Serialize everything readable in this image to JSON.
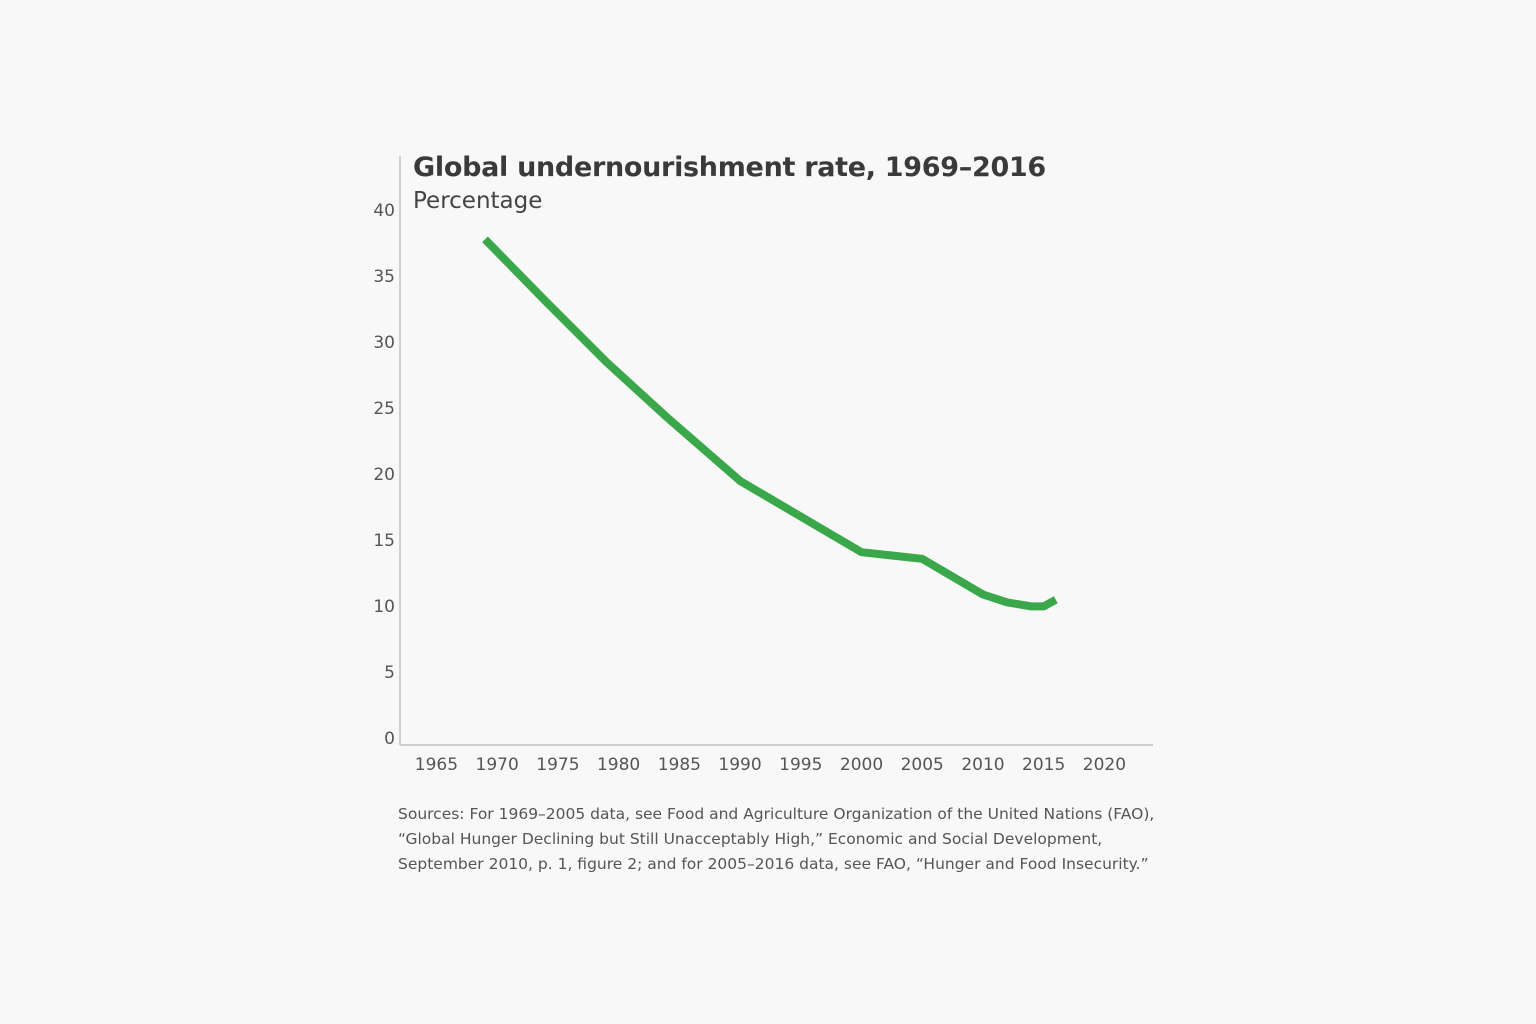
{
  "chart_data": {
    "type": "line",
    "title": "Global undernourishment rate, 1969–2016",
    "subtitle": "Percentage",
    "xlabel": "",
    "ylabel": "",
    "xlim": [
      1962,
      2024
    ],
    "ylim": [
      0,
      44
    ],
    "x_ticks": [
      1965,
      1970,
      1975,
      1980,
      1985,
      1990,
      1995,
      2000,
      2005,
      2010,
      2015,
      2020
    ],
    "y_ticks": [
      0,
      5,
      10,
      15,
      20,
      25,
      30,
      35,
      40
    ],
    "grid": false,
    "legend": "none",
    "series": [
      {
        "color": "#3aa84a",
        "x": [
          1969,
          1974,
          1979,
          1984,
          1990,
          1995,
          2000,
          2005,
          2010,
          2012,
          2014,
          2015,
          2016
        ],
        "y": [
          38.3,
          33.6,
          29.0,
          24.8,
          20.0,
          17.3,
          14.6,
          14.1,
          11.4,
          10.8,
          10.5,
          10.5,
          11.0
        ]
      }
    ]
  },
  "source_lines": [
    "Sources: For 1969–2005 data, see Food and Agriculture Organization of the United Nations  (FAO),",
    "“Global Hunger Declining but Still Unacceptably High,” Economic and Social Development,",
    "September 2010, p. 1, figure 2; and for 2005–2016 data, see FAO, “Hunger and Food Insecurity.”"
  ]
}
